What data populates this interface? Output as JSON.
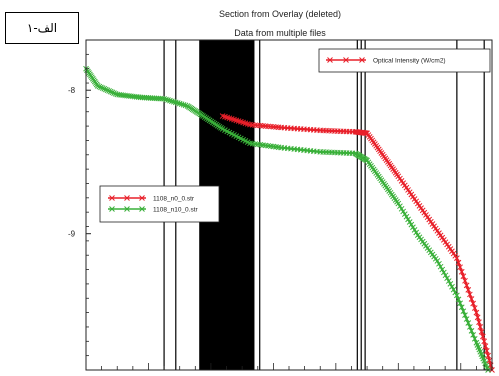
{
  "figure_label": "۱-الف",
  "chart_data": {
    "type": "line",
    "title": "Section from Overlay (deleted)",
    "subtitle": "Data from multiple files",
    "xlabel": "",
    "ylabel": "",
    "ylim": [
      -9.95,
      -7.65
    ],
    "xlim": [
      0,
      10.4
    ],
    "y_ticks": [
      -8,
      -9
    ],
    "y_tick_labels": [
      "-8",
      "-9"
    ],
    "y_scale": "linear",
    "grid": false,
    "legend_position": "middle-left",
    "legend2_position": "top-right",
    "vertical_markers": [
      2.0,
      2.3,
      3.0,
      3.1,
      4.2,
      4.3,
      4.45,
      6.95,
      7.05,
      7.15,
      9.5,
      10.2
    ],
    "filled_band": [
      2.9,
      4.3
    ],
    "series": [
      {
        "name": "1108_n0_0.str",
        "color": "#e8202a",
        "marker": "x",
        "x": [
          3.5,
          4.2,
          5.0,
          6.0,
          6.9,
          7.2,
          7.6,
          8.0,
          8.5,
          9.0,
          9.5,
          10.0,
          10.4
        ],
        "y": [
          -8.18,
          -8.24,
          -8.26,
          -8.28,
          -8.29,
          -8.3,
          -8.45,
          -8.6,
          -8.79,
          -8.98,
          -9.17,
          -9.55,
          -9.95
        ]
      },
      {
        "name": "1108_n10_0.str",
        "color": "#3ab03a",
        "marker": "x",
        "x": [
          0.0,
          0.3,
          0.8,
          1.4,
          2.0,
          2.6,
          3.0,
          3.5,
          4.2,
          5.0,
          6.0,
          6.9,
          7.2,
          7.6,
          8.0,
          8.5,
          9.0,
          9.5,
          10.0,
          10.3
        ],
        "y": [
          -7.85,
          -7.97,
          -8.03,
          -8.05,
          -8.06,
          -8.11,
          -8.18,
          -8.27,
          -8.37,
          -8.4,
          -8.43,
          -8.44,
          -8.49,
          -8.64,
          -8.79,
          -9.01,
          -9.19,
          -9.43,
          -9.76,
          -9.95
        ]
      }
    ],
    "extra_legend_entry": {
      "name": "Optical Intensity (W/cm2)",
      "color": "#e8202a",
      "marker": "x"
    }
  }
}
